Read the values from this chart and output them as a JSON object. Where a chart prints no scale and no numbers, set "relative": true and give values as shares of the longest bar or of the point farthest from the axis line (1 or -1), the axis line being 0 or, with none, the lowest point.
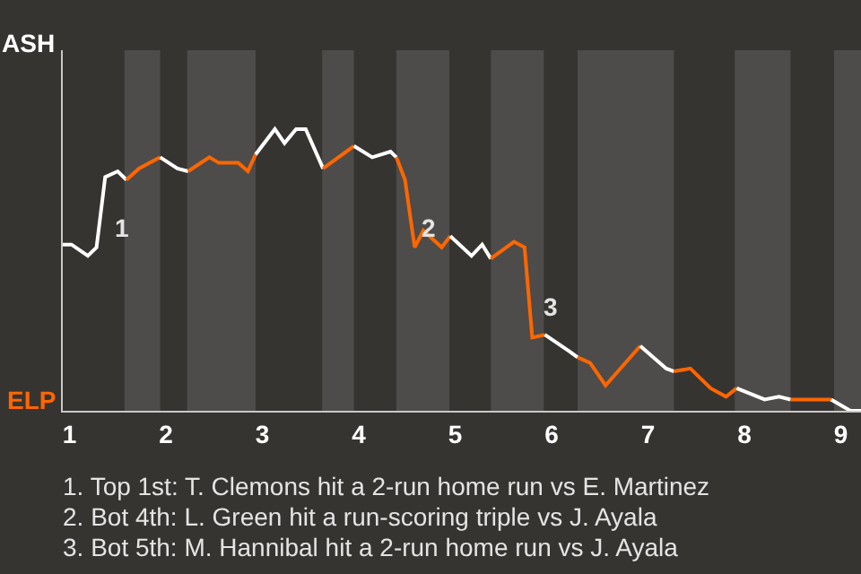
{
  "chart_data": {
    "type": "line",
    "relative": true,
    "xlim": [
      0.93,
      9.21
    ],
    "xticks": [
      1,
      2,
      3,
      4,
      5,
      6,
      7,
      8,
      9
    ],
    "marker": "none",
    "series": [
      {
        "color": "#ffffff",
        "x": [
          0.93,
          1.02,
          1.19,
          1.28,
          1.37,
          1.5,
          1.59
        ],
        "values": [
          0.59,
          0.59,
          0.55,
          0.58,
          0.83,
          0.85,
          0.82
        ]
      },
      {
        "color": "#ff6600",
        "x": [
          1.59,
          1.72,
          1.94
        ],
        "values": [
          0.82,
          0.86,
          0.9
        ]
      },
      {
        "color": "#ffffff",
        "x": [
          1.94,
          2.12,
          2.23
        ],
        "values": [
          0.9,
          0.86,
          0.85
        ]
      },
      {
        "color": "#ff6600",
        "x": [
          2.23,
          2.45,
          2.55,
          2.75,
          2.85,
          2.93
        ],
        "values": [
          0.85,
          0.9,
          0.88,
          0.88,
          0.85,
          0.91
        ]
      },
      {
        "color": "#ffffff",
        "x": [
          2.93,
          3.13,
          3.23,
          3.35,
          3.45,
          3.63
        ],
        "values": [
          0.91,
          1,
          0.95,
          1,
          1,
          0.86
        ]
      },
      {
        "color": "#ff6600",
        "x": [
          3.63,
          3.95
        ],
        "values": [
          0.86,
          0.94
        ]
      },
      {
        "color": "#ffffff",
        "x": [
          3.95,
          4.14,
          4.33,
          4.39
        ],
        "values": [
          0.94,
          0.9,
          0.92,
          0.9
        ]
      },
      {
        "color": "#ff6600",
        "x": [
          4.39,
          4.48,
          4.58,
          4.67,
          4.86,
          4.95
        ],
        "values": [
          0.9,
          0.82,
          0.58,
          0.64,
          0.58,
          0.62
        ]
      },
      {
        "color": "#ffffff",
        "x": [
          4.95,
          5.17,
          5.28,
          5.37
        ],
        "values": [
          0.62,
          0.55,
          0.59,
          0.54
        ]
      },
      {
        "color": "#ff6600",
        "x": [
          5.37,
          5.61,
          5.72,
          5.8,
          5.93
        ],
        "values": [
          0.54,
          0.6,
          0.58,
          0.26,
          0.27
        ]
      },
      {
        "color": "#ffffff",
        "x": [
          5.93,
          6.19,
          6.27
        ],
        "values": [
          0.27,
          0.21,
          0.19
        ]
      },
      {
        "color": "#ff6600",
        "x": [
          6.27,
          6.4,
          6.56,
          6.92
        ],
        "values": [
          0.19,
          0.17,
          0.09,
          0.23
        ]
      },
      {
        "color": "#ffffff",
        "x": [
          6.92,
          7.19,
          7.27
        ],
        "values": [
          0.23,
          0.15,
          0.14
        ]
      },
      {
        "color": "#ff6600",
        "x": [
          7.27,
          7.44,
          7.65,
          7.81,
          7.92
        ],
        "values": [
          0.14,
          0.15,
          0.08,
          0.05,
          0.08
        ]
      },
      {
        "color": "#ffffff",
        "x": [
          7.92,
          8.21,
          8.36,
          8.48
        ],
        "values": [
          0.08,
          0.04,
          0.05,
          0.04
        ]
      },
      {
        "color": "#ff6600",
        "x": [
          8.48,
          8.9
        ],
        "values": [
          0.04,
          0.04
        ]
      },
      {
        "color": "#ffffff",
        "x": [
          8.9,
          9.1,
          9.21
        ],
        "values": [
          0.04,
          0,
          0
        ]
      }
    ],
    "bands": [
      {
        "axis": "x",
        "from": 1.57,
        "to": 1.94,
        "color": "#4d4c4a"
      },
      {
        "axis": "x",
        "from": 2.22,
        "to": 2.93,
        "color": "#4d4c4a"
      },
      {
        "axis": "x",
        "from": 3.62,
        "to": 3.95,
        "color": "#4d4c4a"
      },
      {
        "axis": "x",
        "from": 4.39,
        "to": 4.94,
        "color": "#4d4c4a"
      },
      {
        "axis": "x",
        "from": 5.37,
        "to": 5.92,
        "color": "#4d4c4a"
      },
      {
        "axis": "x",
        "from": 6.27,
        "to": 7.27,
        "color": "#4d4c4a"
      },
      {
        "axis": "x",
        "from": 7.9,
        "to": 8.48,
        "color": "#4d4c4a"
      },
      {
        "axis": "x",
        "from": 8.93,
        "to": 9.21,
        "color": "#4d4c4a"
      }
    ],
    "annotations": [
      "ASH",
      "ELP",
      {
        "text": "1",
        "x": 1.43,
        "y": 0.65
      },
      {
        "text": "2",
        "x": 4.62,
        "y": 0.65
      },
      {
        "text": "3",
        "x": 5.88,
        "y": 0.37
      },
      "1. Top 1st: T. Clemons hit a 2-run home run vs E. Martinez",
      "2. Bot 4th: L. Green hit a run-scoring triple vs J. Ayala",
      "3. Bot 5th: M. Hannibal hit a 2-run home run vs J. Ayala"
    ]
  }
}
